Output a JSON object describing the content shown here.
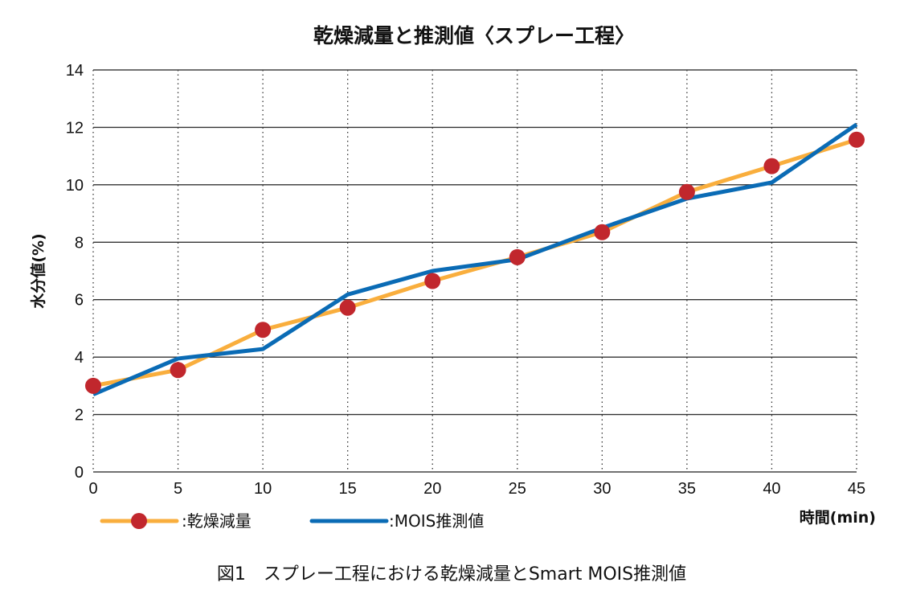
{
  "chart_data": {
    "type": "line",
    "title": "乾燥減量と推測値〈スプレー工程〉",
    "xlabel": "時間(min)",
    "ylabel": "水分値(%)",
    "caption": "図1　スプレー工程における乾燥減量とSmart MOIS推測値",
    "x": [
      0,
      5,
      10,
      15,
      20,
      25,
      30,
      35,
      40,
      45
    ],
    "xlim": [
      0,
      45
    ],
    "ylim": [
      0,
      14
    ],
    "x_ticks": [
      "0",
      "5",
      "10",
      "15",
      "20",
      "25",
      "30",
      "35",
      "40",
      "45"
    ],
    "y_ticks": [
      "0",
      "2",
      "4",
      "6",
      "8",
      "10",
      "12",
      "14"
    ],
    "grid": true,
    "legend_position": "bottom-left",
    "series": [
      {
        "name": ":乾燥減量",
        "color": "#F9AE3D",
        "marker_color": "#C1272D",
        "marker": "circle",
        "values": [
          3.0,
          3.55,
          4.95,
          5.72,
          6.65,
          7.48,
          8.35,
          9.75,
          10.65,
          11.57
        ]
      },
      {
        "name": ":MOIS推測値",
        "color": "#0A6BB5",
        "marker": "none",
        "values": [
          2.7,
          3.95,
          4.28,
          6.18,
          7.0,
          7.4,
          8.5,
          9.52,
          10.08,
          12.1
        ]
      }
    ]
  }
}
